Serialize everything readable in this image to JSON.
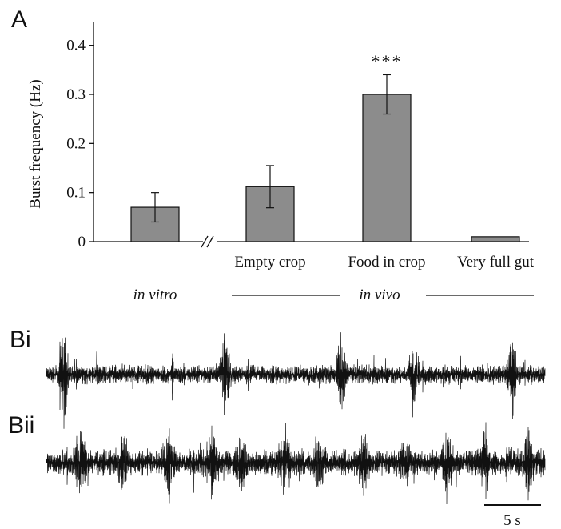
{
  "panels": {
    "a_label": "A",
    "bi_label": "Bi",
    "bii_label": "Bii"
  },
  "chart_data": {
    "type": "bar",
    "ylabel": "Burst frequency (Hz)",
    "ylim": [
      0,
      0.45
    ],
    "yticks": [
      {
        "value": 0,
        "label": "0"
      },
      {
        "value": 0.1,
        "label": "0.1"
      },
      {
        "value": 0.2,
        "label": "0.2"
      },
      {
        "value": 0.3,
        "label": "0.3"
      },
      {
        "value": 0.4,
        "label": "0.4"
      }
    ],
    "categories": [
      "",
      "Empty crop",
      "Food in crop",
      "Very full gut"
    ],
    "values": [
      0.07,
      0.112,
      0.3,
      0.01
    ],
    "errors": [
      0.03,
      0.043,
      0.04,
      0
    ],
    "annotations": [
      {
        "category_index": 2,
        "text": "***"
      }
    ],
    "axis_break": "//",
    "groups": [
      {
        "label": "in vitro",
        "category_indices": [
          0
        ]
      },
      {
        "label": "in vivo",
        "category_indices": [
          1,
          2,
          3
        ]
      }
    ],
    "bar_color": "#8c8c8c",
    "grid": false,
    "legend": "none"
  },
  "traces": {
    "scale_bar_label": "5 s"
  }
}
